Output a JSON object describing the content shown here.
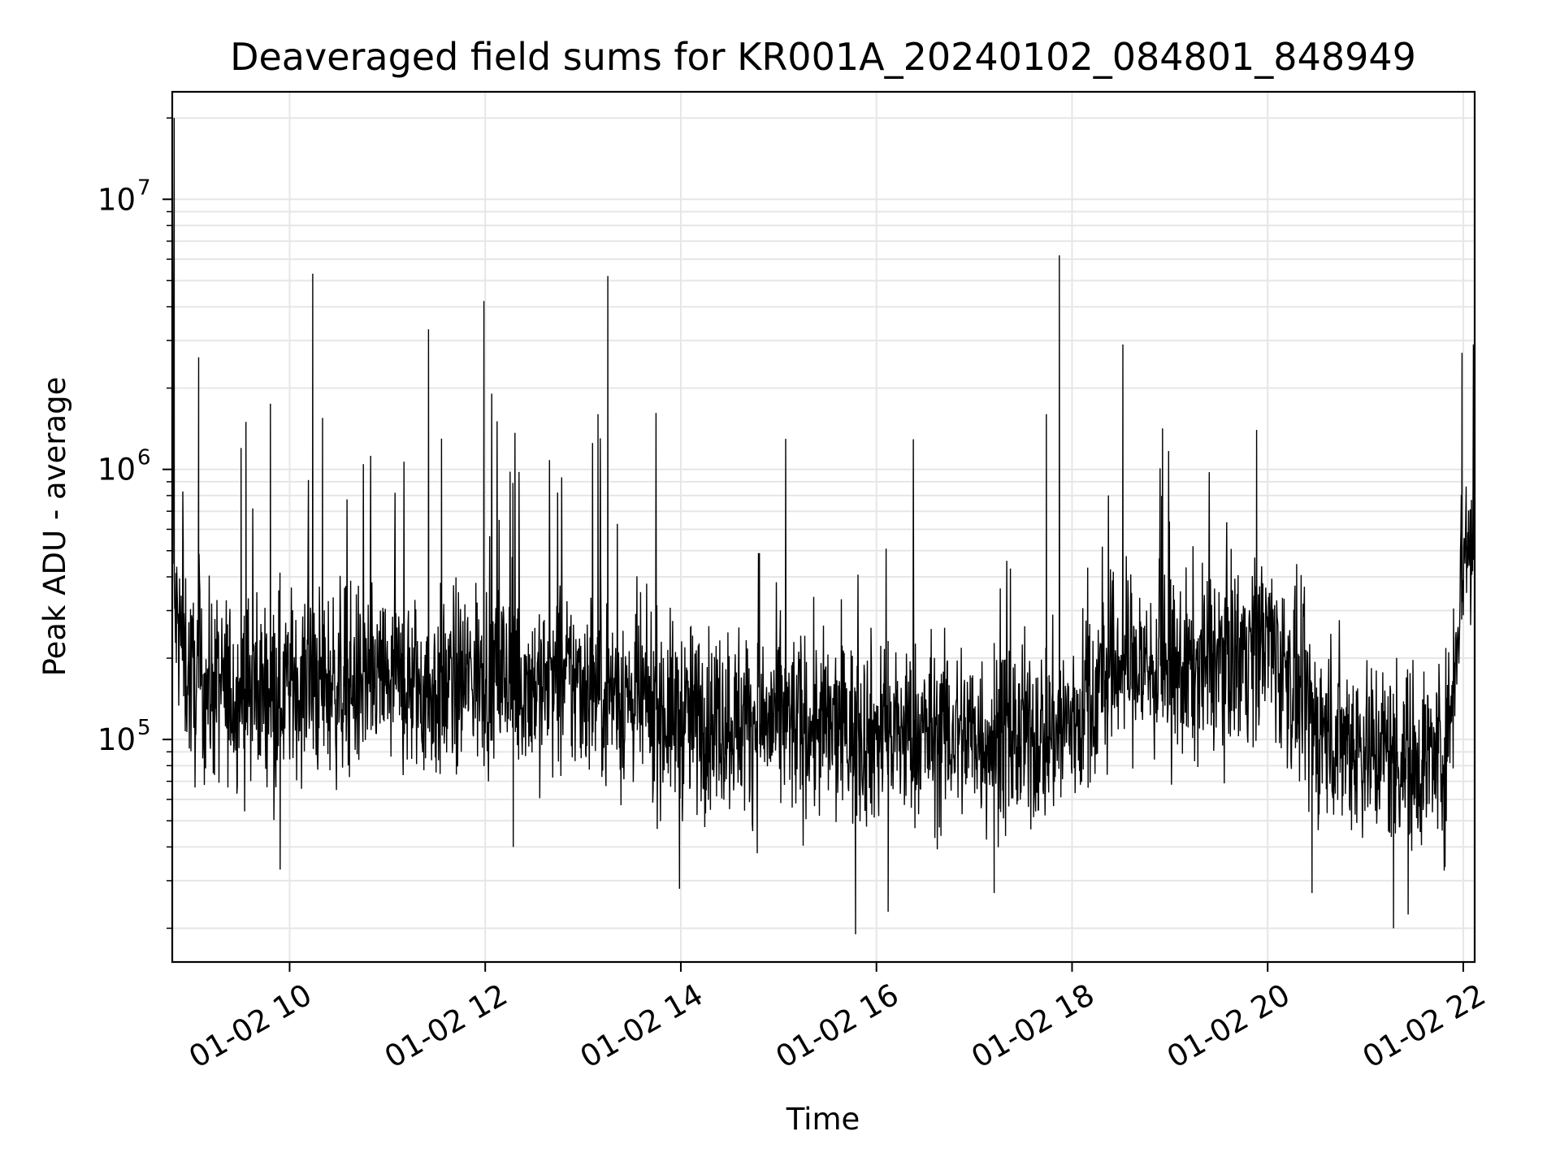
{
  "chart_data": {
    "type": "line",
    "title": "Deaveraged field sums for KR001A_20240102_084801_848949",
    "xlabel": "Time",
    "ylabel": "Peak ADU - average",
    "yscale": "log",
    "xlim": [
      "01-02 08:48",
      "01-02 22:07"
    ],
    "ylim": [
      15000,
      25000000
    ],
    "grid": true,
    "line_color": "#000000",
    "grid_color": "#e6e6e6",
    "xticks": [
      {
        "time": "01-02 10:00",
        "label": "01-02 10"
      },
      {
        "time": "01-02 12:00",
        "label": "01-02 12"
      },
      {
        "time": "01-02 14:00",
        "label": "01-02 14"
      },
      {
        "time": "01-02 16:00",
        "label": "01-02 16"
      },
      {
        "time": "01-02 18:00",
        "label": "01-02 18"
      },
      {
        "time": "01-02 20:00",
        "label": "01-02 20"
      },
      {
        "time": "01-02 22:00",
        "label": "01-02 22"
      }
    ],
    "yticks": [
      {
        "value": 100000,
        "base": "10",
        "exp": "5"
      },
      {
        "value": 1000000,
        "base": "10",
        "exp": "6"
      },
      {
        "value": 10000000,
        "base": "10",
        "exp": "7"
      }
    ],
    "series": [
      {
        "values_profile": [
          {
            "time": "01-02 08:48",
            "value": 20000000
          },
          {
            "time": "01-02 08:49",
            "value": 300000
          },
          {
            "time": "01-02 09:00",
            "value": 160000
          },
          {
            "time": "01-02 09:30",
            "value": 150000
          },
          {
            "time": "01-02 10:00",
            "value": 160000
          },
          {
            "time": "01-02 10:30",
            "value": 160000
          },
          {
            "time": "01-02 11:00",
            "value": 165000
          },
          {
            "time": "01-02 11:30",
            "value": 150000
          },
          {
            "time": "01-02 12:00",
            "value": 180000
          },
          {
            "time": "01-02 12:30",
            "value": 160000
          },
          {
            "time": "01-02 13:00",
            "value": 165000
          },
          {
            "time": "01-02 13:30",
            "value": 140000
          },
          {
            "time": "01-02 14:00",
            "value": 120000
          },
          {
            "time": "01-02 14:30",
            "value": 120000
          },
          {
            "time": "01-02 15:00",
            "value": 115000
          },
          {
            "time": "01-02 15:30",
            "value": 110000
          },
          {
            "time": "01-02 16:00",
            "value": 105000
          },
          {
            "time": "01-02 16:30",
            "value": 105000
          },
          {
            "time": "01-02 17:00",
            "value": 105000
          },
          {
            "time": "01-02 17:30",
            "value": 100000
          },
          {
            "time": "01-02 18:00",
            "value": 115000
          },
          {
            "time": "01-02 18:30",
            "value": 200000
          },
          {
            "time": "01-02 19:00",
            "value": 170000
          },
          {
            "time": "01-02 19:30",
            "value": 200000
          },
          {
            "time": "01-02 20:00",
            "value": 240000
          },
          {
            "time": "01-02 20:30",
            "value": 110000
          },
          {
            "time": "01-02 21:00",
            "value": 95000
          },
          {
            "time": "01-02 21:30",
            "value": 85000
          },
          {
            "time": "01-02 21:50",
            "value": 90000
          },
          {
            "time": "01-02 22:00",
            "value": 500000
          },
          {
            "time": "01-02 22:07",
            "value": 550000
          }
        ],
        "spikes": [
          {
            "time": "01-02 08:49",
            "value": 20000000
          },
          {
            "time": "01-02 09:04",
            "value": 2600000
          },
          {
            "time": "01-02 09:30",
            "value": 1200000
          },
          {
            "time": "01-02 09:33",
            "value": 1500000
          },
          {
            "time": "01-02 09:48",
            "value": 1750000
          },
          {
            "time": "01-02 10:14",
            "value": 5300000
          },
          {
            "time": "01-02 10:20",
            "value": 1550000
          },
          {
            "time": "01-02 11:25",
            "value": 3300000
          },
          {
            "time": "01-02 11:33",
            "value": 1300000
          },
          {
            "time": "01-02 11:59",
            "value": 4200000
          },
          {
            "time": "01-02 13:09",
            "value": 1600000
          },
          {
            "time": "01-02 13:15",
            "value": 5200000
          },
          {
            "time": "01-02 14:48",
            "value": 490000
          },
          {
            "time": "01-02 17:44",
            "value": 1600000
          },
          {
            "time": "01-02 17:52",
            "value": 6200000
          },
          {
            "time": "01-02 18:31",
            "value": 2900000
          },
          {
            "time": "01-02 19:53",
            "value": 1400000
          },
          {
            "time": "01-02 21:59",
            "value": 2700000
          },
          {
            "time": "01-02 22:06",
            "value": 2900000
          }
        ],
        "dips": [
          {
            "time": "01-02 09:54",
            "value": 33000
          },
          {
            "time": "01-02 12:17",
            "value": 40000
          },
          {
            "time": "01-02 13:59",
            "value": 28000
          },
          {
            "time": "01-02 15:47",
            "value": 19000
          },
          {
            "time": "01-02 16:07",
            "value": 23000
          },
          {
            "time": "01-02 17:12",
            "value": 27000
          },
          {
            "time": "01-02 20:27",
            "value": 27000
          },
          {
            "time": "01-02 21:17",
            "value": 20000
          },
          {
            "time": "01-02 21:26",
            "value": 22500
          }
        ]
      }
    ]
  }
}
